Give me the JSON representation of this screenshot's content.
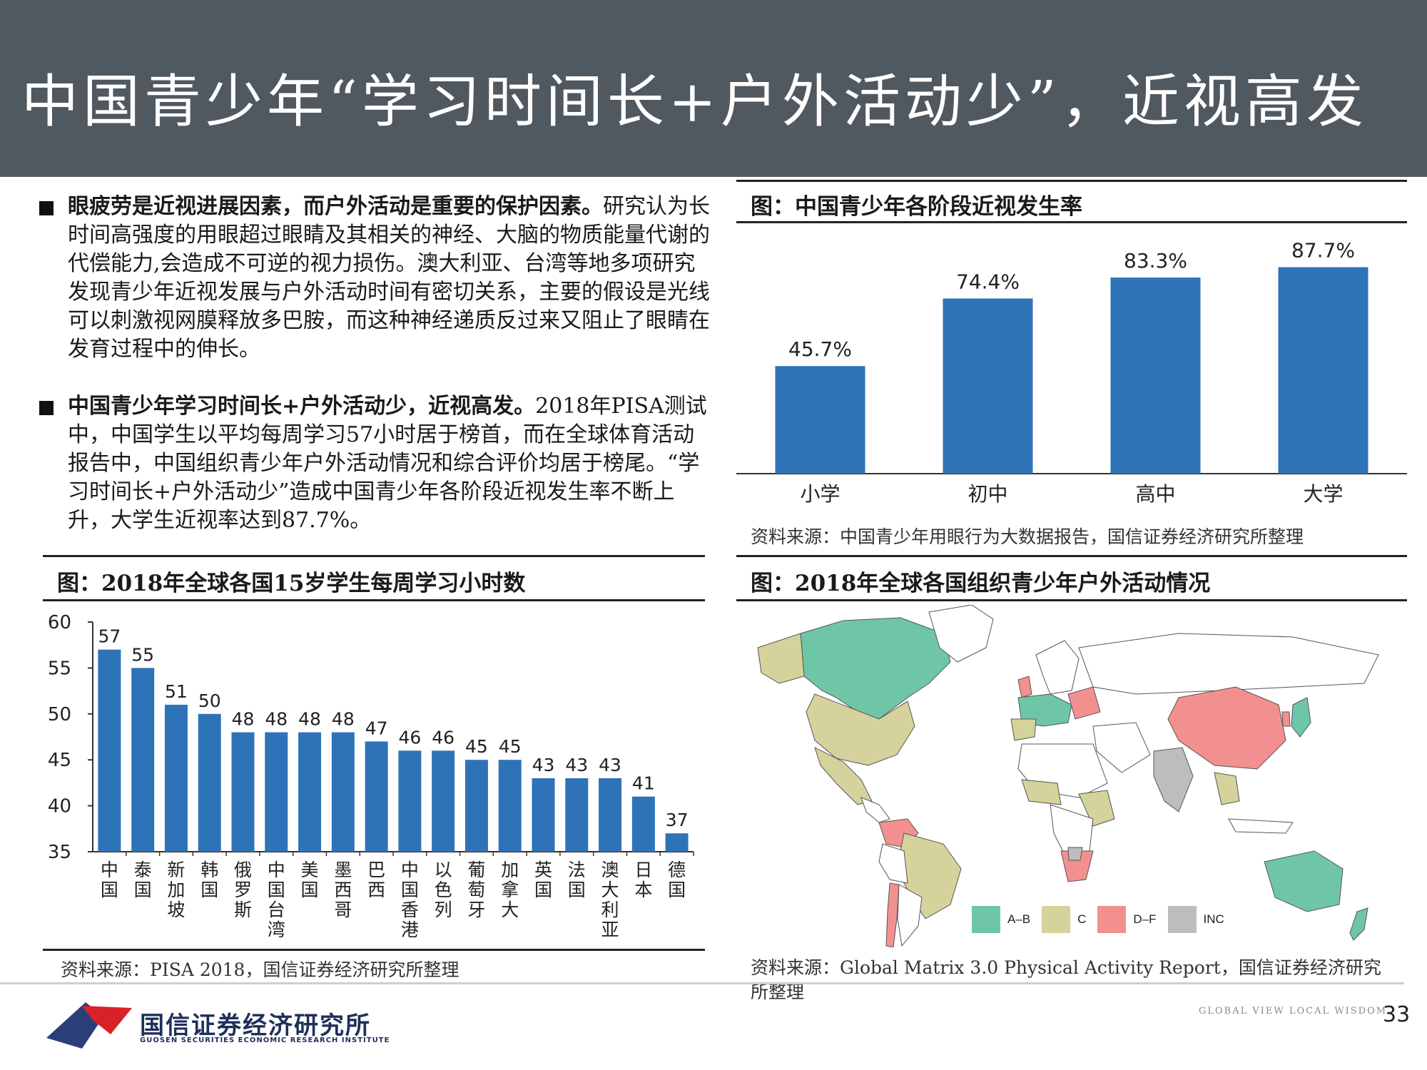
{
  "header": {
    "title": "中国青少年“学习时间长+户外活动少”，近视高发"
  },
  "bullets": [
    {
      "bold": "眼疲劳是近视进展因素，而户外活动是重要的保护因素。",
      "text": "研究认为长时间高强度的用眼超过眼睛及其相关的神经、大脑的物质能量代谢的代偿能力,会造成不可逆的视力损伤。澳大利亚、台湾等地多项研究发现青少年近视发展与户外活动时间有密切关系，主要的假设是光线可以刺激视网膜释放多巴胺，而这种神经递质反过来又阻止了眼睛在发育过程中的伸长。"
    },
    {
      "bold": "中国青少年学习时间长+户外活动少，近视高发。",
      "text": "2018年PISA测试中，中国学生以平均每周学习57小时居于榜首，而在全球体育活动报告中，中国组织青少年户外活动情况和综合评价均居于榜尾。“学习时间长+户外活动少”造成中国青少年各阶段近视发生率不断上升，大学生近视率达到87.7%。"
    }
  ],
  "myopia_panel": {
    "title": "图：中国青少年各阶段近视发生率",
    "source": "资料来源：中国青少年用眼行为大数据报告，国信证券经济研究所整理"
  },
  "study_panel": {
    "title": "图：2018年全球各国15岁学生每周学习小时数",
    "source": "资料来源：PISA 2018，国信证券经济研究所整理"
  },
  "map_panel": {
    "title": "图：2018年全球各国组织青少年户外活动情况",
    "source": "资料来源：Global Matrix 3.0 Physical Activity Report，国信证券经济研究所整理",
    "legend": [
      {
        "label": "A–B",
        "color": "#6fc6a6"
      },
      {
        "label": "C",
        "color": "#d6d29c"
      },
      {
        "label": "D–F",
        "color": "#f29090"
      },
      {
        "label": "INC",
        "color": "#bdbdbd"
      }
    ]
  },
  "chart_data": [
    {
      "type": "bar",
      "categories": [
        "小学",
        "初中",
        "高中",
        "大学"
      ],
      "values": [
        45.7,
        74.4,
        83.3,
        87.7
      ],
      "value_labels": [
        "45.7%",
        "74.4%",
        "83.3%",
        "87.7%"
      ],
      "ylim": [
        0,
        100
      ],
      "color": "#2e73b8",
      "grid": false
    },
    {
      "type": "bar",
      "categories": [
        "中国",
        "泰国",
        "新加坡",
        "韩国",
        "俄罗斯",
        "中国台湾",
        "美国",
        "墨西哥",
        "巴西",
        "中国香港",
        "以色列",
        "葡萄牙",
        "加拿大",
        "英国",
        "法国",
        "澳大利亚",
        "日本",
        "德国"
      ],
      "values": [
        57,
        55,
        51,
        50,
        48,
        48,
        48,
        48,
        47,
        46,
        46,
        45,
        45,
        43,
        43,
        43,
        41,
        37
      ],
      "ylim": [
        35,
        60
      ],
      "yticks": [
        35,
        40,
        45,
        50,
        55,
        60
      ],
      "color": "#2e73b8",
      "grid": false
    }
  ],
  "footer": {
    "logo_text": "国信证券经济研究所",
    "logo_sub": "GUOSEN SECURITIES ECONOMIC RESEARCH INSTITUTE",
    "tagline": "GLOBAL VIEW   LOCAL WISDOM",
    "page_number": "33"
  }
}
